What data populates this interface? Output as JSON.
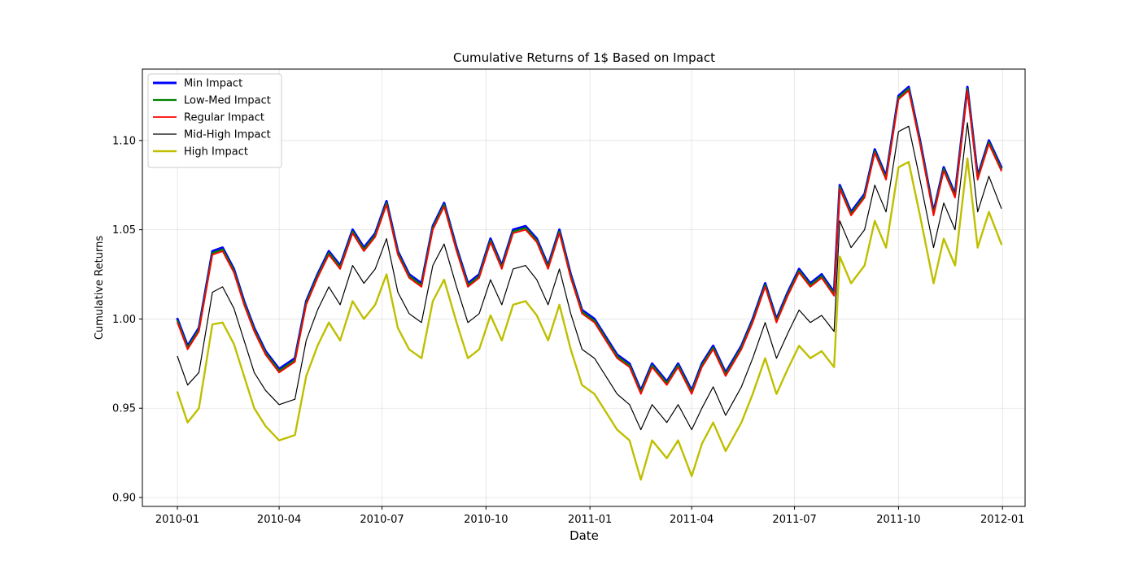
{
  "chart_data": {
    "type": "line",
    "title": "Cumulative Returns of 1$ Based on Impact",
    "xlabel": "Date",
    "ylabel": "Cumulative Returns",
    "xlim": [
      "2009-12-01",
      "2012-01-21"
    ],
    "ylim": [
      0.895,
      1.14
    ],
    "x_ticks": [
      "2010-01",
      "2010-04",
      "2010-07",
      "2010-10",
      "2011-01",
      "2011-04",
      "2011-07",
      "2011-10",
      "2012-01"
    ],
    "y_ticks": [
      "0.90",
      "0.95",
      "1.00",
      "1.05",
      "1.10"
    ],
    "grid": true,
    "legend_position": "top-left",
    "dates": [
      "2010-01-01",
      "2010-01-10",
      "2010-01-20",
      "2010-02-01",
      "2010-02-10",
      "2010-02-20",
      "2010-03-01",
      "2010-03-10",
      "2010-03-20",
      "2010-04-01",
      "2010-04-15",
      "2010-04-25",
      "2010-05-05",
      "2010-05-15",
      "2010-05-25",
      "2010-06-05",
      "2010-06-15",
      "2010-06-25",
      "2010-07-05",
      "2010-07-15",
      "2010-07-25",
      "2010-08-05",
      "2010-08-15",
      "2010-08-25",
      "2010-09-05",
      "2010-09-15",
      "2010-09-25",
      "2010-10-05",
      "2010-10-15",
      "2010-10-25",
      "2010-11-05",
      "2010-11-15",
      "2010-11-25",
      "2010-12-05",
      "2010-12-15",
      "2010-12-25",
      "2011-01-05",
      "2011-01-15",
      "2011-01-25",
      "2011-02-05",
      "2011-02-15",
      "2011-02-25",
      "2011-03-10",
      "2011-03-20",
      "2011-04-01",
      "2011-04-10",
      "2011-04-20",
      "2011-05-01",
      "2011-05-15",
      "2011-05-25",
      "2011-06-05",
      "2011-06-15",
      "2011-06-25",
      "2011-07-05",
      "2011-07-15",
      "2011-07-25",
      "2011-08-05",
      "2011-08-10",
      "2011-08-20",
      "2011-09-01",
      "2011-09-10",
      "2011-09-20",
      "2011-10-01",
      "2011-10-10",
      "2011-10-20",
      "2011-11-01",
      "2011-11-10",
      "2011-11-20",
      "2011-12-01",
      "2011-12-10",
      "2011-12-20",
      "2011-12-31"
    ],
    "series": [
      {
        "name": "Min Impact",
        "color": "#0000ff",
        "width": 3,
        "values": [
          1.0,
          0.985,
          0.995,
          1.038,
          1.04,
          1.028,
          1.01,
          0.995,
          0.982,
          0.972,
          0.978,
          1.01,
          1.025,
          1.038,
          1.03,
          1.05,
          1.04,
          1.048,
          1.066,
          1.038,
          1.025,
          1.02,
          1.052,
          1.065,
          1.04,
          1.02,
          1.025,
          1.045,
          1.03,
          1.05,
          1.052,
          1.045,
          1.03,
          1.05,
          1.025,
          1.005,
          1.0,
          0.99,
          0.98,
          0.975,
          0.96,
          0.975,
          0.965,
          0.975,
          0.96,
          0.975,
          0.985,
          0.97,
          0.985,
          1.0,
          1.02,
          1.0,
          1.015,
          1.028,
          1.02,
          1.025,
          1.015,
          1.075,
          1.06,
          1.07,
          1.095,
          1.08,
          1.125,
          1.13,
          1.1,
          1.06,
          1.085,
          1.07,
          1.13,
          1.08,
          1.1,
          1.085
        ]
      },
      {
        "name": "Low-Med Impact",
        "color": "#008000",
        "width": 2.2,
        "values": [
          0.999,
          0.984,
          0.994,
          1.037,
          1.039,
          1.027,
          1.009,
          0.994,
          0.981,
          0.971,
          0.977,
          1.009,
          1.024,
          1.037,
          1.029,
          1.049,
          1.039,
          1.047,
          1.065,
          1.037,
          1.024,
          1.019,
          1.051,
          1.064,
          1.039,
          1.019,
          1.024,
          1.044,
          1.029,
          1.049,
          1.051,
          1.044,
          1.029,
          1.049,
          1.024,
          1.004,
          0.999,
          0.989,
          0.979,
          0.974,
          0.959,
          0.974,
          0.964,
          0.974,
          0.959,
          0.974,
          0.984,
          0.969,
          0.984,
          0.999,
          1.019,
          0.999,
          1.014,
          1.027,
          1.019,
          1.024,
          1.014,
          1.074,
          1.059,
          1.069,
          1.094,
          1.079,
          1.124,
          1.129,
          1.099,
          1.059,
          1.084,
          1.069,
          1.129,
          1.079,
          1.099,
          1.084
        ]
      },
      {
        "name": "Regular Impact",
        "color": "#ff0000",
        "width": 1.8,
        "values": [
          0.998,
          0.983,
          0.993,
          1.036,
          1.038,
          1.026,
          1.008,
          0.993,
          0.98,
          0.97,
          0.976,
          1.008,
          1.023,
          1.036,
          1.028,
          1.048,
          1.038,
          1.046,
          1.064,
          1.036,
          1.023,
          1.018,
          1.05,
          1.063,
          1.038,
          1.018,
          1.023,
          1.043,
          1.028,
          1.048,
          1.05,
          1.043,
          1.028,
          1.048,
          1.023,
          1.003,
          0.998,
          0.988,
          0.978,
          0.973,
          0.958,
          0.973,
          0.963,
          0.973,
          0.958,
          0.973,
          0.983,
          0.968,
          0.983,
          0.998,
          1.018,
          0.998,
          1.013,
          1.026,
          1.018,
          1.023,
          1.013,
          1.073,
          1.058,
          1.068,
          1.093,
          1.078,
          1.123,
          1.128,
          1.098,
          1.058,
          1.083,
          1.068,
          1.128,
          1.078,
          1.098,
          1.083
        ]
      },
      {
        "name": "Mid-High Impact",
        "color": "#000000",
        "width": 1.2,
        "values": [
          0.979,
          0.963,
          0.97,
          1.015,
          1.018,
          1.006,
          0.988,
          0.97,
          0.96,
          0.952,
          0.955,
          0.988,
          1.005,
          1.018,
          1.008,
          1.03,
          1.02,
          1.028,
          1.045,
          1.015,
          1.003,
          0.998,
          1.03,
          1.042,
          1.018,
          0.998,
          1.003,
          1.022,
          1.008,
          1.028,
          1.03,
          1.022,
          1.008,
          1.028,
          1.003,
          0.983,
          0.978,
          0.968,
          0.958,
          0.952,
          0.938,
          0.952,
          0.942,
          0.952,
          0.938,
          0.95,
          0.962,
          0.946,
          0.962,
          0.978,
          0.998,
          0.978,
          0.992,
          1.005,
          0.998,
          1.002,
          0.993,
          1.055,
          1.04,
          1.05,
          1.075,
          1.06,
          1.105,
          1.108,
          1.078,
          1.04,
          1.065,
          1.05,
          1.11,
          1.06,
          1.08,
          1.062
        ]
      },
      {
        "name": "High Impact",
        "color": "#bfbf00",
        "width": 2.4,
        "values": [
          0.959,
          0.942,
          0.95,
          0.997,
          0.998,
          0.986,
          0.968,
          0.95,
          0.94,
          0.932,
          0.935,
          0.968,
          0.985,
          0.998,
          0.988,
          1.01,
          1.0,
          1.008,
          1.025,
          0.995,
          0.983,
          0.978,
          1.01,
          1.022,
          0.998,
          0.978,
          0.983,
          1.002,
          0.988,
          1.008,
          1.01,
          1.002,
          0.988,
          1.008,
          0.983,
          0.963,
          0.958,
          0.948,
          0.938,
          0.932,
          0.91,
          0.932,
          0.922,
          0.932,
          0.912,
          0.93,
          0.942,
          0.926,
          0.942,
          0.958,
          0.978,
          0.958,
          0.972,
          0.985,
          0.978,
          0.982,
          0.973,
          1.035,
          1.02,
          1.03,
          1.055,
          1.04,
          1.085,
          1.088,
          1.058,
          1.02,
          1.045,
          1.03,
          1.09,
          1.04,
          1.06,
          1.042
        ]
      }
    ]
  }
}
